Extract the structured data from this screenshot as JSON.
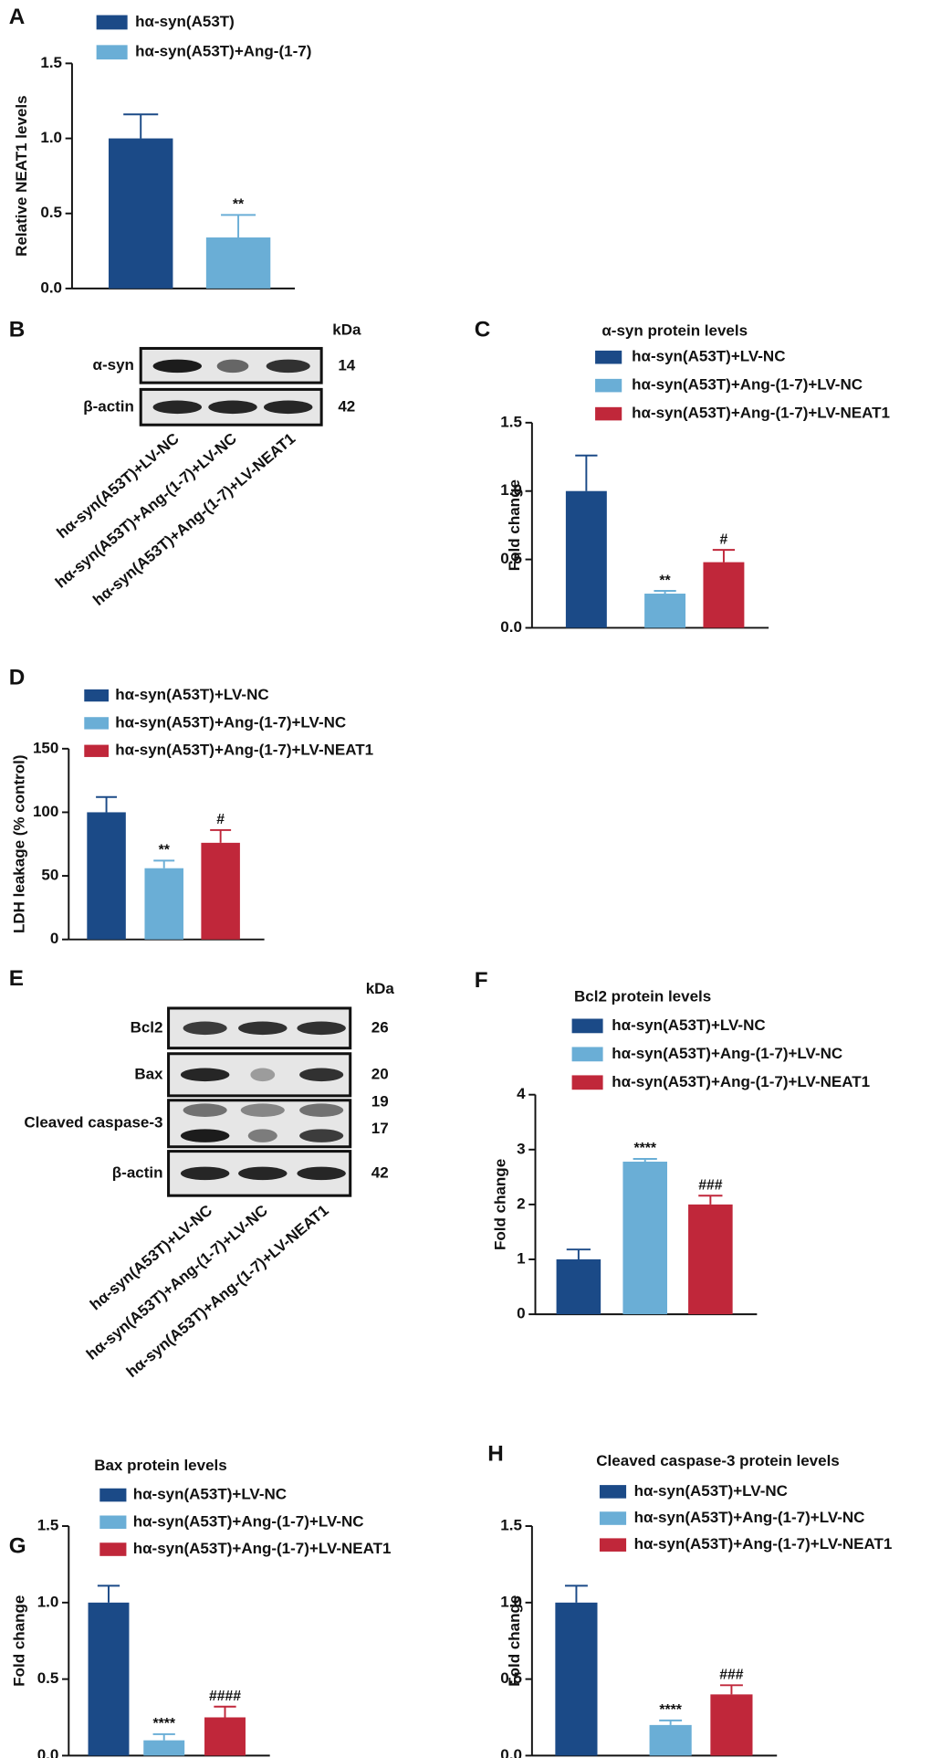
{
  "chart_data": [
    {
      "type": "bar",
      "panel": "A",
      "ylabel": "Relative NEAT1 levels",
      "categories": [
        "hα-syn(A53T)",
        "hα-syn(A53T)+Ang-(1-7)"
      ],
      "colors": [
        "#1b4a87",
        "#6aaed6"
      ],
      "values": [
        1.0,
        0.34
      ],
      "errors": [
        0.16,
        0.15
      ],
      "significance": [
        null,
        "**"
      ],
      "ylim": [
        0,
        1.5
      ],
      "yticks": [
        {
          "value": 0,
          "label": "0.0"
        },
        0.5,
        {
          "value": 1,
          "label": "1.0"
        },
        1.5
      ]
    },
    {
      "type": "bar",
      "panel": "C",
      "title": "α-syn protein levels",
      "ylabel": "Fold change",
      "categories": [
        "hα-syn(A53T)+LV-NC",
        "hα-syn(A53T)+Ang-(1-7)+LV-NC",
        "hα-syn(A53T)+Ang-(1-7)+LV-NEAT1"
      ],
      "colors": [
        "#1b4a87",
        "#6aaed6",
        "#c0273a"
      ],
      "values": [
        1.0,
        0.25,
        0.48
      ],
      "errors": [
        0.26,
        0.02,
        0.09
      ],
      "significance": [
        null,
        "**",
        "#"
      ],
      "ylim": [
        0,
        1.5
      ],
      "yticks": [
        {
          "value": 0,
          "label": "0.0"
        },
        0.5,
        {
          "value": 1,
          "label": "1.0"
        },
        1.5
      ]
    },
    {
      "type": "bar",
      "panel": "D",
      "ylabel": "LDH leakage (% control)",
      "categories": [
        "hα-syn(A53T)+LV-NC",
        "hα-syn(A53T)+Ang-(1-7)+LV-NC",
        "hα-syn(A53T)+Ang-(1-7)+LV-NEAT1"
      ],
      "colors": [
        "#1b4a87",
        "#6aaed6",
        "#c0273a"
      ],
      "values": [
        100,
        56,
        76
      ],
      "errors": [
        12,
        6,
        10
      ],
      "significance": [
        null,
        "**",
        "#"
      ],
      "ylim": [
        0,
        150
      ],
      "yticks": [
        0,
        50,
        100,
        150
      ]
    },
    {
      "type": "bar",
      "panel": "F",
      "title": "Bcl2 protein levels",
      "ylabel": "Fold change",
      "categories": [
        "hα-syn(A53T)+LV-NC",
        "hα-syn(A53T)+Ang-(1-7)+LV-NC",
        "hα-syn(A53T)+Ang-(1-7)+LV-NEAT1"
      ],
      "colors": [
        "#1b4a87",
        "#6aaed6",
        "#c0273a"
      ],
      "values": [
        1.0,
        2.78,
        2.0
      ],
      "errors": [
        0.18,
        0.05,
        0.16
      ],
      "significance": [
        null,
        "****",
        "###"
      ],
      "ylim": [
        0,
        4
      ],
      "yticks": [
        0,
        1,
        2,
        3,
        4
      ]
    },
    {
      "type": "bar",
      "panel": "G",
      "title": "Bax protein levels",
      "ylabel": "Fold change",
      "categories": [
        "hα-syn(A53T)+LV-NC",
        "hα-syn(A53T)+Ang-(1-7)+LV-NC",
        "hα-syn(A53T)+Ang-(1-7)+LV-NEAT1"
      ],
      "colors": [
        "#1b4a87",
        "#6aaed6",
        "#c0273a"
      ],
      "values": [
        1.0,
        0.1,
        0.25
      ],
      "errors": [
        0.11,
        0.04,
        0.07
      ],
      "significance": [
        null,
        "****",
        "####"
      ],
      "ylim": [
        0,
        1.5
      ],
      "yticks": [
        {
          "value": 0,
          "label": "0.0"
        },
        0.5,
        {
          "value": 1,
          "label": "1.0"
        },
        1.5
      ]
    },
    {
      "type": "bar",
      "panel": "H",
      "title": "Cleaved caspase-3 protein levels",
      "ylabel": "Fold change",
      "categories": [
        "hα-syn(A53T)+LV-NC",
        "hα-syn(A53T)+Ang-(1-7)+LV-NC",
        "hα-syn(A53T)+Ang-(1-7)+LV-NEAT1"
      ],
      "colors": [
        "#1b4a87",
        "#6aaed6",
        "#c0273a"
      ],
      "values": [
        1.0,
        0.2,
        0.4
      ],
      "errors": [
        0.11,
        0.03,
        0.06
      ],
      "significance": [
        null,
        "****",
        "###"
      ],
      "ylim": [
        0,
        1.5
      ],
      "yticks": [
        {
          "value": 0,
          "label": "0.0"
        },
        0.5,
        {
          "value": 1,
          "label": "1.0"
        },
        1.5
      ]
    }
  ],
  "blots": [
    {
      "panel": "B",
      "unit": "kDa",
      "rows": [
        {
          "label": "α-syn",
          "kda": [
            14
          ]
        },
        {
          "label": "β-actin",
          "kda": [
            42
          ]
        }
      ],
      "lanes": [
        "hα-syn(A53T)+LV-NC",
        "hα-syn(A53T)+Ang-(1-7)+LV-NC",
        "hα-syn(A53T)+Ang-(1-7)+LV-NEAT1"
      ]
    },
    {
      "panel": "E",
      "unit": "kDa",
      "rows": [
        {
          "label": "Bcl2",
          "kda": [
            26
          ]
        },
        {
          "label": "Bax",
          "kda": [
            20
          ]
        },
        {
          "label": "Cleaved caspase-3",
          "kda": [
            19,
            17
          ]
        },
        {
          "label": "β-actin",
          "kda": [
            42
          ]
        }
      ],
      "lanes": [
        "hα-syn(A53T)+LV-NC",
        "hα-syn(A53T)+Ang-(1-7)+LV-NC",
        "hα-syn(A53T)+Ang-(1-7)+LV-NEAT1"
      ]
    }
  ]
}
